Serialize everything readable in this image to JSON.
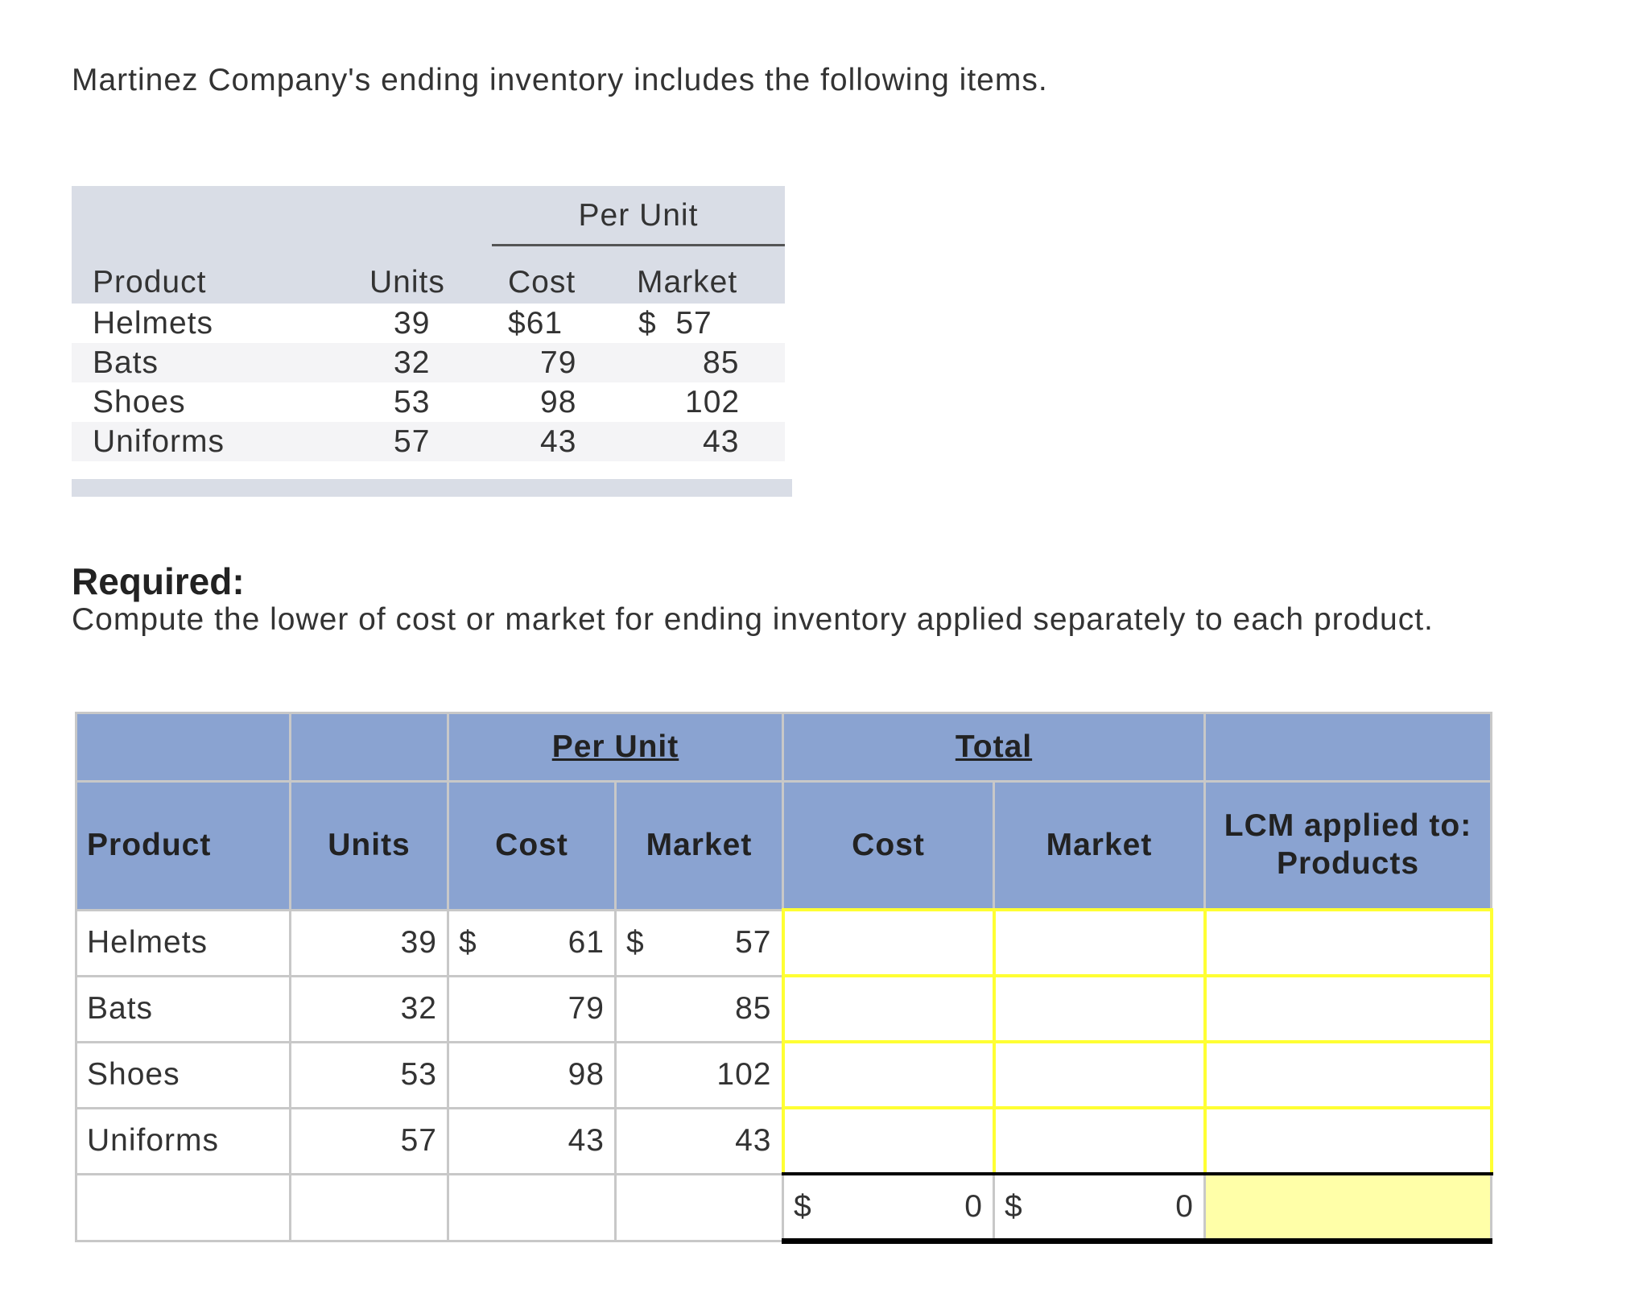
{
  "intro": "Martinez Company's ending inventory includes the following items.",
  "given_table": {
    "per_unit_label": "Per Unit",
    "headers": {
      "product": "Product",
      "units": "Units",
      "cost": "Cost",
      "market": "Market"
    },
    "rows": [
      {
        "product": "Helmets",
        "units": "39",
        "cost": "$61",
        "market": "$  57"
      },
      {
        "product": "Bats",
        "units": "32",
        "cost": "79",
        "market": "85"
      },
      {
        "product": "Shoes",
        "units": "53",
        "cost": "98",
        "market": "102"
      },
      {
        "product": "Uniforms",
        "units": "57",
        "cost": "43",
        "market": "43"
      }
    ]
  },
  "required": {
    "title": "Required:",
    "text": "Compute the lower of cost or market for ending inventory applied separately to each product."
  },
  "answer_table": {
    "group_per_unit": "Per Unit",
    "group_total": "Total",
    "headers": {
      "product": "Product",
      "units": "Units",
      "cost": "Cost",
      "market": "Market",
      "total_cost": "Cost",
      "total_market": "Market",
      "lcm": "LCM applied to: Products"
    },
    "rows": [
      {
        "product": "Helmets",
        "units": "39",
        "cost_sym": "$",
        "cost": "61",
        "market_sym": "$",
        "market": "57"
      },
      {
        "product": "Bats",
        "units": "32",
        "cost_sym": "",
        "cost": "79",
        "market_sym": "",
        "market": "85"
      },
      {
        "product": "Shoes",
        "units": "53",
        "cost_sym": "",
        "cost": "98",
        "market_sym": "",
        "market": "102"
      },
      {
        "product": "Uniforms",
        "units": "57",
        "cost_sym": "",
        "cost": "43",
        "market_sym": "",
        "market": "43"
      }
    ],
    "totals": {
      "currency": "$",
      "cost": "0",
      "market": "0"
    }
  },
  "colors": {
    "header_bg": "#8aa3d1",
    "input_border": "#ffff33",
    "total_highlight": "#ffffa8",
    "given_header_bg": "#d9dde6"
  }
}
